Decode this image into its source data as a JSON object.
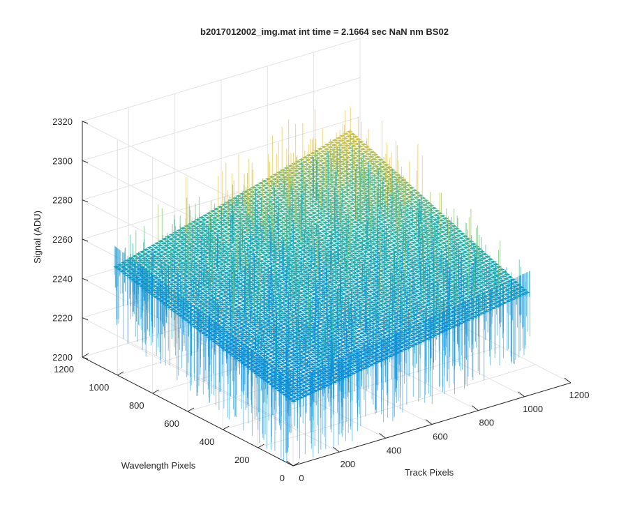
{
  "chart_data": {
    "type": "surface",
    "title": "b2017012002_img.mat int time = 2.1664 sec  NaN nm BS02",
    "xlabel": "Track Pixels",
    "ylabel": "Wavelength Pixels",
    "zlabel": "Signal (ADU)",
    "xlim": [
      0,
      1200
    ],
    "ylim": [
      0,
      1200
    ],
    "zlim": [
      2200,
      2320
    ],
    "x_ticks": [
      "0",
      "200",
      "400",
      "600",
      "800",
      "1000",
      "1200"
    ],
    "y_ticks": [
      "0",
      "200",
      "400",
      "600",
      "800",
      "1000",
      "1200"
    ],
    "z_ticks": [
      "2200",
      "2220",
      "2240",
      "2260",
      "2280",
      "2300",
      "2320"
    ],
    "surface_extent": {
      "x": [
        0,
        1024
      ],
      "y": [
        0,
        1024
      ]
    },
    "surface_corner_signal": {
      "x0_y0": 2232,
      "x1024_y0": 2252,
      "x0_y1024": 2254,
      "x1024_y1024": 2288
    },
    "noise_amplitude": 14,
    "colormap": "parula",
    "colors": {
      "low": "#0d8fd6",
      "mid": "#21b4a8",
      "high": "#e9c33a",
      "grid": "#e3e3e3",
      "axis": "#262626"
    },
    "grid": true,
    "view": "3d-azimuth-neg37.5-elevation-30"
  }
}
